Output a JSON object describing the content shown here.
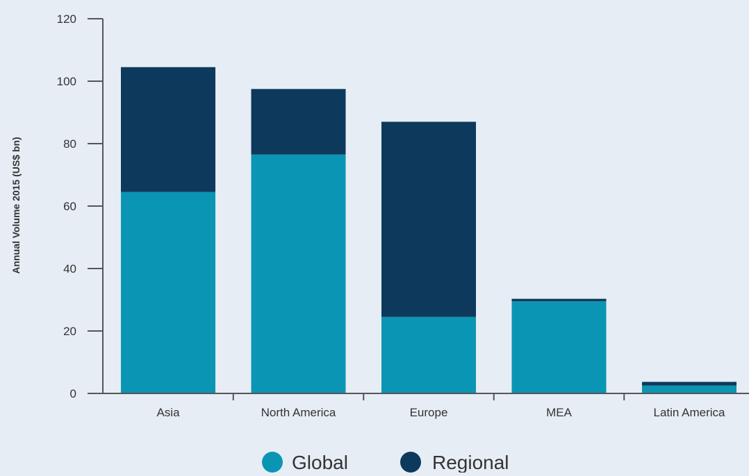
{
  "chart_data": {
    "type": "bar",
    "stacked": true,
    "categories": [
      "Asia",
      "North America",
      "Europe",
      "MEA",
      "Latin America"
    ],
    "series": [
      {
        "name": "Global",
        "values": [
          64.5,
          76.5,
          24.5,
          29.5,
          2.5
        ],
        "color": "#0b95b5"
      },
      {
        "name": "Regional",
        "values": [
          40,
          21,
          62.5,
          0.8,
          1.2
        ],
        "color": "#0d3a5c"
      }
    ],
    "ylabel": "Annual Volume 2015 (US$ bn)",
    "xlabel": "",
    "ylim": [
      0,
      120
    ],
    "yticks": [
      0,
      20,
      40,
      60,
      80,
      100,
      120
    ],
    "ytick_labels": [
      "0",
      "20",
      "40",
      "60",
      "80",
      "100",
      "120"
    ],
    "grid": false,
    "legend_position": "bottom-center"
  }
}
